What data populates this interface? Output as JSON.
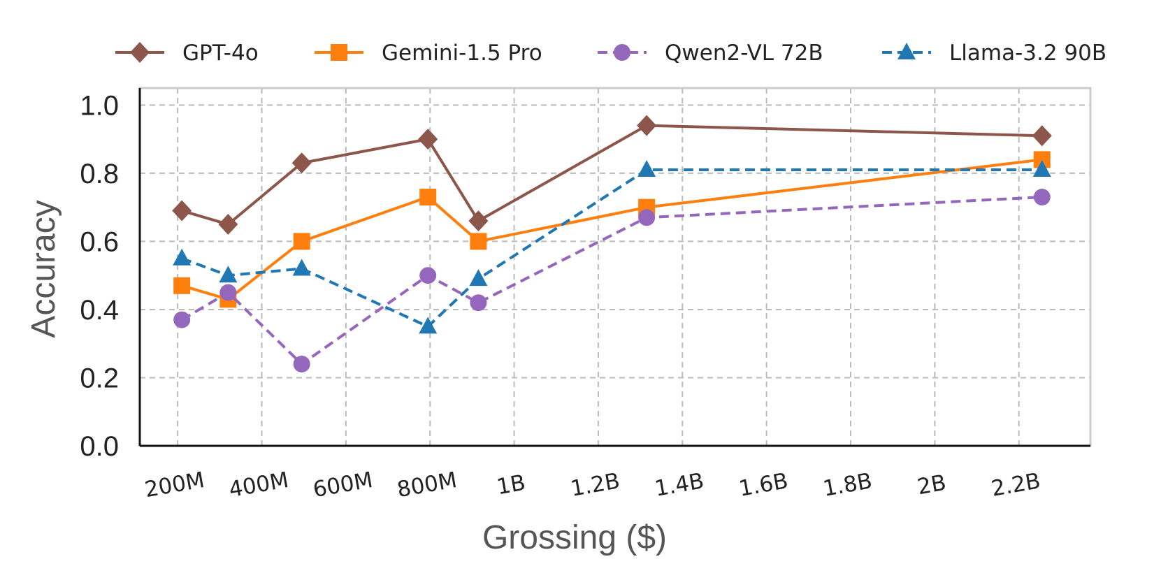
{
  "chart_data": {
    "type": "line",
    "title": "",
    "xlabel": "Grossing ($)",
    "ylabel": "Accuracy",
    "x_tick_values": [
      200,
      400,
      600,
      800,
      1000,
      1200,
      1400,
      1600,
      1800,
      2000,
      2200
    ],
    "x_tick_labels": [
      "200M",
      "400M",
      "600M",
      "800M",
      "1B",
      "1.2B",
      "1.4B",
      "1.6B",
      "1.8B",
      "2B",
      "2.2B"
    ],
    "x_unit": "millions USD",
    "y_ticks": [
      "0.0",
      "0.2",
      "0.4",
      "0.6",
      "0.8",
      "1.0"
    ],
    "xlim": [
      110,
      2370
    ],
    "ylim": [
      0.0,
      1.05
    ],
    "grid": true,
    "legend_position": "top",
    "series": [
      {
        "name": "GPT-4o",
        "color": "#8c564b",
        "marker": "diamond",
        "dashed": false,
        "x": [
          210,
          320,
          495,
          795,
          915,
          1315,
          2255
        ],
        "y": [
          0.69,
          0.65,
          0.83,
          0.9,
          0.66,
          0.94,
          0.91
        ]
      },
      {
        "name": "Gemini-1.5 Pro",
        "color": "#ff7f0e",
        "marker": "square",
        "dashed": false,
        "x": [
          210,
          320,
          495,
          795,
          915,
          1315,
          2255
        ],
        "y": [
          0.47,
          0.43,
          0.6,
          0.73,
          0.6,
          0.7,
          0.84
        ]
      },
      {
        "name": "Qwen2-VL 72B",
        "color": "#9467bd",
        "marker": "circle",
        "dashed": true,
        "x": [
          210,
          320,
          495,
          795,
          915,
          1315,
          2255
        ],
        "y": [
          0.37,
          0.45,
          0.24,
          0.5,
          0.42,
          0.67,
          0.73
        ]
      },
      {
        "name": "Llama-3.2 90B",
        "color": "#1f77b4",
        "marker": "triangle",
        "dashed": true,
        "x": [
          210,
          320,
          495,
          795,
          915,
          1315,
          2255
        ],
        "y": [
          0.55,
          0.5,
          0.52,
          0.35,
          0.49,
          0.81,
          0.81
        ]
      }
    ]
  }
}
